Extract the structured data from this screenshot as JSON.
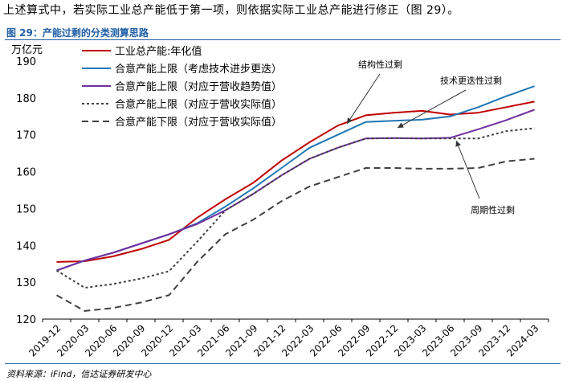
{
  "intro_text": "上述算式中，若实际工业总产能低于第一项，则依据实际工业总产能进行修正（图 29）。",
  "figure_title": "图 29：产能过剩的分类测算思路",
  "source_text": "资料来源：iFind，信达证券研发中心",
  "chart_data": {
    "type": "line",
    "ylabel": "万亿元",
    "ylim": [
      120,
      190
    ],
    "yticks": [
      120,
      130,
      140,
      150,
      160,
      170,
      180,
      190
    ],
    "categories": [
      "2019-12",
      "2020-03",
      "2020-06",
      "2020-09",
      "2020-12",
      "2021-03",
      "2021-06",
      "2021-09",
      "2021-12",
      "2022-03",
      "2022-06",
      "2022-09",
      "2022-12",
      "2023-03",
      "2023-06",
      "2023-09",
      "2023-12",
      "2024-03"
    ],
    "series": [
      {
        "name": "工业总产能:年化值",
        "color": "#c00000",
        "dash": "",
        "values": [
          135.5,
          135.7,
          137.0,
          139.0,
          141.5,
          147.5,
          152.5,
          157.0,
          163.0,
          168.0,
          172.5,
          175.3,
          176.0,
          176.5,
          175.5,
          176.0,
          177.5,
          179.0
        ]
      },
      {
        "name": "合意产能上限（考虑技术进步更迭）",
        "color": "#1f77b4",
        "dash": "",
        "values": [
          133.2,
          135.9,
          138.0,
          140.5,
          143.0,
          146.0,
          150.5,
          155.5,
          161.0,
          166.5,
          170.0,
          173.5,
          173.8,
          174.1,
          175.0,
          177.5,
          180.5,
          183.2
        ]
      },
      {
        "name": "合意产能上限（对应于营收趋势值）",
        "color": "#7030a0",
        "dash": "",
        "values": [
          133.2,
          135.9,
          138.0,
          140.5,
          143.0,
          145.8,
          149.5,
          154.0,
          159.0,
          163.5,
          166.5,
          169.0,
          169.1,
          169.0,
          169.2,
          171.5,
          174.0,
          176.8
        ]
      },
      {
        "name": "合意产能上限（对应于营收实际值）",
        "color": "#404040",
        "dash": "3,3",
        "values": [
          133.2,
          128.5,
          129.5,
          131.0,
          133.0,
          141.0,
          149.5,
          154.0,
          159.0,
          163.5,
          166.5,
          169.0,
          169.1,
          169.0,
          169.0,
          169.0,
          171.0,
          171.8
        ]
      },
      {
        "name": "合意产能下限（对应于营收实际值）",
        "color": "#404040",
        "dash": "8,5",
        "values": [
          126.5,
          122.2,
          123.0,
          124.5,
          126.5,
          135.5,
          143.0,
          147.0,
          152.0,
          156.0,
          158.5,
          161.0,
          161.0,
          160.8,
          160.8,
          161.0,
          162.8,
          163.5
        ]
      }
    ],
    "annotations": [
      {
        "text": "结构性过剩"
      },
      {
        "text": "技术更迭性过剩"
      },
      {
        "text": "周期性过剩"
      }
    ]
  }
}
